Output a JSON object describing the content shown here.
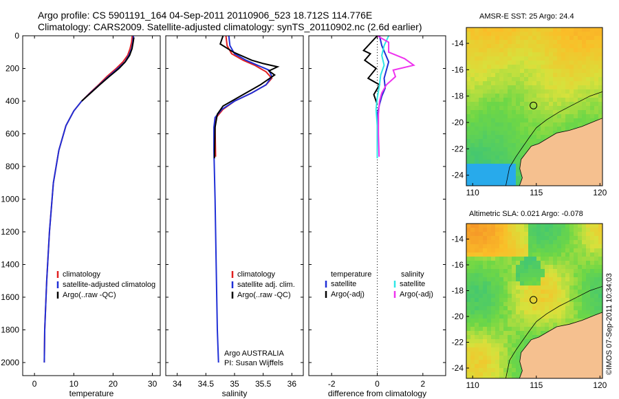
{
  "header": {
    "line1": "Argo profile: CS 5901191_164 04-Sep-2011 20110906_523 18.712S 114.776E",
    "line2": "Climatology: CARS2009. Satellite-adjusted climatology: synTS_20110902.nc (2.6d earlier)"
  },
  "colors": {
    "climatology": "#e02020",
    "satellite": "#1f2fd6",
    "argo": "#000000",
    "satellite_salinity": "#2ee6e6",
    "argo_adj_salinity": "#ee33ee",
    "land": "#f5c08f"
  },
  "chart_data": [
    {
      "type": "line",
      "xlabel": "temperature",
      "ylabel": "",
      "xlim": [
        -3,
        32
      ],
      "ylim": [
        2080,
        0
      ],
      "xticks": [
        0,
        10,
        20,
        30
      ],
      "yticks": [
        0,
        200,
        400,
        600,
        800,
        1000,
        1200,
        1400,
        1600,
        1800,
        2000
      ],
      "legend": {
        "position": "lower-left",
        "entries": [
          "climatology",
          "satellite-adjusted climatolog",
          "Argo(..raw -QC)"
        ]
      },
      "series": [
        {
          "name": "climatology",
          "color": "#e02020",
          "x": [
            24.9,
            24.7,
            24.3,
            23.7,
            22.5,
            20.8,
            18.4,
            16.3,
            14.1,
            12.0,
            10.0,
            8.0,
            6.2,
            4.8,
            3.8,
            3.1,
            2.6,
            2.5
          ],
          "y": [
            0,
            40,
            80,
            120,
            160,
            200,
            250,
            300,
            350,
            400,
            460,
            550,
            700,
            900,
            1200,
            1500,
            1800,
            2000
          ]
        },
        {
          "name": "satellite-adjusted climatolog",
          "color": "#1f2fd6",
          "x": [
            25.2,
            25.0,
            24.7,
            24.0,
            23.0,
            21.2,
            18.8,
            16.5,
            14.2,
            12.0,
            10.0,
            8.0,
            6.2,
            4.8,
            3.8,
            3.1,
            2.6,
            2.5
          ],
          "y": [
            0,
            40,
            80,
            120,
            160,
            200,
            250,
            300,
            350,
            400,
            460,
            550,
            700,
            900,
            1200,
            1500,
            1800,
            2000
          ]
        },
        {
          "name": "Argo(..raw -QC)",
          "color": "#000000",
          "x": [
            25.3,
            25.1,
            24.8,
            24.2,
            23.1,
            21.5,
            19.0,
            16.6,
            14.3,
            12.0
          ],
          "y": [
            10,
            40,
            80,
            120,
            160,
            200,
            250,
            300,
            350,
            400
          ]
        }
      ]
    },
    {
      "type": "line",
      "xlabel": "salinity",
      "ylabel": "",
      "xlim": [
        33.8,
        36.2
      ],
      "ylim": [
        2080,
        0
      ],
      "xticks": [
        34,
        34.5,
        35,
        35.5,
        36
      ],
      "legend": {
        "position": "lower-center",
        "entries": [
          "climatology",
          "satellite adj. clim.",
          "Argo(..raw -QC)"
        ]
      },
      "annotations": [
        "Argo AUSTRALIA",
        "PI: Susan Wijffels"
      ],
      "series": [
        {
          "name": "climatology",
          "color": "#e02020",
          "x": [
            34.85,
            34.87,
            34.95,
            35.15,
            35.35,
            35.55,
            35.65,
            35.55,
            35.3,
            35.0,
            34.8,
            34.68,
            34.66,
            34.67
          ],
          "y": [
            0,
            60,
            110,
            150,
            180,
            220,
            260,
            300,
            350,
            400,
            450,
            500,
            560,
            740
          ]
        },
        {
          "name": "satellite adj. clim.",
          "color": "#1f2fd6",
          "x": [
            34.9,
            34.92,
            35.0,
            35.2,
            35.4,
            35.6,
            35.65,
            35.55,
            35.3,
            35.0,
            34.78,
            34.66,
            34.64,
            34.64,
            34.66,
            34.68,
            34.7,
            34.72
          ],
          "y": [
            0,
            60,
            110,
            150,
            180,
            210,
            250,
            300,
            350,
            400,
            450,
            500,
            560,
            700,
            1000,
            1400,
            1800,
            2000
          ]
        },
        {
          "name": "Argo(..raw -QC)",
          "color": "#000000",
          "x": [
            34.8,
            34.75,
            34.98,
            35.3,
            35.5,
            35.75,
            35.6,
            35.7,
            35.45,
            35.1,
            34.8,
            34.7,
            34.66,
            34.65
          ],
          "y": [
            0,
            50,
            100,
            150,
            170,
            190,
            215,
            240,
            300,
            370,
            430,
            480,
            560,
            750
          ]
        }
      ]
    },
    {
      "type": "line",
      "xlabel": "difference from climatology",
      "ylabel": "",
      "xlim": [
        -3,
        3
      ],
      "ylim": [
        2080,
        0
      ],
      "xticks": [
        -2,
        0,
        2
      ],
      "legend": {
        "position": "lower-center",
        "entries": [
          "temperature",
          "satellite",
          "Argo(-adj)",
          "salinity",
          "satellite",
          "Argo(-adj)"
        ]
      },
      "series": [
        {
          "name": "satellite",
          "group": "temperature",
          "color": "#1f2fd6",
          "x": [
            0.1,
            0.2,
            0.35,
            0.5,
            0.4,
            0.3,
            0.35,
            0.2,
            0.1,
            0.0,
            0.0
          ],
          "y": [
            0,
            60,
            110,
            160,
            210,
            260,
            320,
            370,
            420,
            480,
            560
          ]
        },
        {
          "name": "Argo(-adj)",
          "group": "temperature",
          "color": "#000000",
          "x": [
            0.0,
            -0.6,
            -0.3,
            -0.55,
            -0.05,
            -0.4,
            0.1,
            -0.15,
            0.0
          ],
          "y": [
            0,
            90,
            110,
            150,
            200,
            260,
            300,
            360,
            420
          ]
        },
        {
          "name": "satellite",
          "group": "salinity",
          "color": "#2ee6e6",
          "x": [
            0.5,
            0.3,
            0.2,
            0.3,
            0.15,
            0.1,
            0.0,
            -0.05,
            0.0,
            0.0
          ],
          "y": [
            0,
            60,
            120,
            180,
            240,
            300,
            380,
            450,
            550,
            750
          ]
        },
        {
          "name": "Argo(-adj)",
          "group": "salinity",
          "color": "#ee33ee",
          "x": [
            0.0,
            0.5,
            0.5,
            1.2,
            1.6,
            0.7,
            0.8,
            0.4,
            0.2,
            0.1,
            0.05,
            0.05,
            0.08
          ],
          "y": [
            0,
            40,
            100,
            140,
            180,
            210,
            250,
            300,
            350,
            400,
            480,
            600,
            740
          ]
        }
      ]
    },
    {
      "type": "heatmap",
      "title": "AMSR-E SST: 25  Argo: 24.4",
      "xticks": [
        110,
        115,
        120
      ],
      "yticks": [
        -14,
        -16,
        -18,
        -20,
        -22,
        -24
      ],
      "xlim": [
        109.5,
        120.2
      ],
      "ylim": [
        -24.8,
        -12.8
      ],
      "marker": {
        "lon": 114.776,
        "lat": -18.712
      }
    },
    {
      "type": "heatmap",
      "title": "Altimetric SLA: 0.021  Argo: -0.078",
      "xticks": [
        110,
        115,
        120
      ],
      "yticks": [
        -14,
        -16,
        -18,
        -20,
        -22,
        -24
      ],
      "xlim": [
        109.5,
        120.2
      ],
      "ylim": [
        -24.8,
        -12.8
      ],
      "marker": {
        "lon": 114.776,
        "lat": -18.712
      }
    }
  ],
  "credit": "©IMOS 07-Sep-2011 10:34:03"
}
